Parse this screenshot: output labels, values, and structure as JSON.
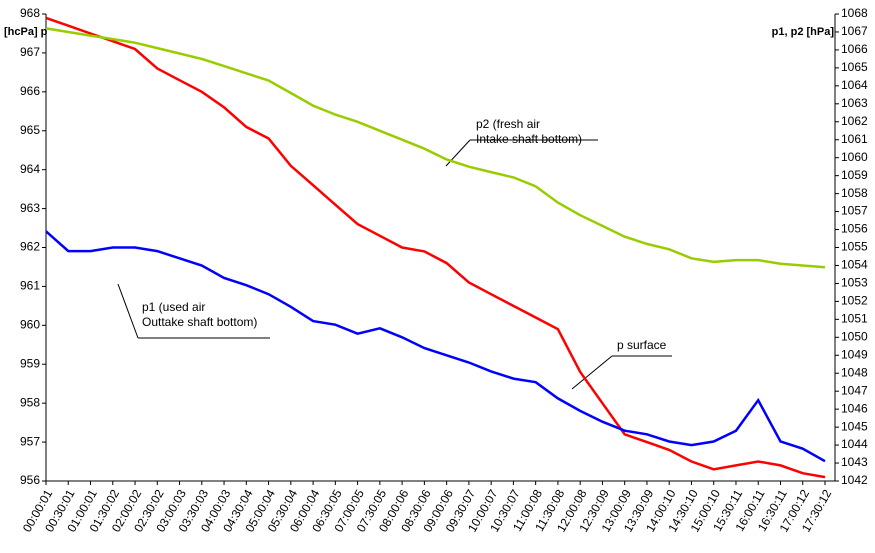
{
  "chart_data": {
    "type": "line",
    "ylabel": "[hcPa] p",
    "y2label": "p1, p2 [hPa]",
    "categories": [
      "00:00:01",
      "00:30:01",
      "01:00:01",
      "01:30:02",
      "02:00:02",
      "02:30:02",
      "03:00:03",
      "03:30:03",
      "04:00:03",
      "04:30:04",
      "05:00:04",
      "05:30:04",
      "06:00:04",
      "06:30:05",
      "07:00:05",
      "07:30:05",
      "08:00:06",
      "08:30:06",
      "09:00:06",
      "09:30:07",
      "10:00:07",
      "10:30:07",
      "11:00:08",
      "11:30:08",
      "12:00:08",
      "12:30:09",
      "13:00:09",
      "13:30:09",
      "14:00:10",
      "14:30:10",
      "15:00:10",
      "15:30:11",
      "16:00:11",
      "16:30:11",
      "17:00:12",
      "17:30:12"
    ],
    "series": [
      {
        "name": "p surface",
        "color": "#ff0000",
        "values": [
          967.9,
          967.7,
          967.5,
          967.3,
          967.1,
          966.6,
          966.3,
          966.0,
          965.6,
          965.1,
          964.8,
          964.1,
          963.6,
          963.1,
          962.6,
          962.3,
          962.0,
          961.9,
          961.6,
          961.1,
          960.8,
          960.5,
          960.2,
          959.9,
          958.8,
          958.0,
          957.2,
          957.0,
          956.8,
          956.5,
          956.3,
          956.4,
          956.5,
          956.4,
          956.2,
          956.1
        ]
      },
      {
        "name": "p2 (fresh air Intake shaft bottom)",
        "color": "#99cc00",
        "axis": "y2",
        "values": [
          1067.2,
          1067.0,
          1066.8,
          1066.6,
          1066.4,
          1066.1,
          1065.8,
          1065.5,
          1065.1,
          1064.7,
          1064.3,
          1063.6,
          1062.9,
          1062.4,
          1062.0,
          1061.5,
          1061.0,
          1060.5,
          1059.9,
          1059.5,
          1059.2,
          1058.9,
          1058.4,
          1057.5,
          1056.8,
          1056.2,
          1055.6,
          1055.2,
          1054.9,
          1054.4,
          1054.2,
          1054.3,
          1054.3,
          1054.1,
          1054.0,
          1053.9
        ]
      },
      {
        "name": "p1 (used air Outtake shaft bottom)",
        "color": "#0000ff",
        "axis": "y2",
        "values": [
          1055.9,
          1054.8,
          1054.8,
          1055.0,
          1055.0,
          1054.8,
          1054.4,
          1054.0,
          1053.3,
          1052.9,
          1052.4,
          1051.7,
          1050.9,
          1050.7,
          1050.2,
          1050.5,
          1050.0,
          1049.4,
          1049.0,
          1048.6,
          1048.1,
          1047.7,
          1047.5,
          1046.6,
          1045.9,
          1045.3,
          1044.8,
          1044.6,
          1044.2,
          1044.0,
          1044.2,
          1044.8,
          1046.5,
          1044.2,
          1043.8,
          1043.1
        ]
      }
    ],
    "annotations": [
      {
        "lines": [
          "p2 (fresh air",
          "Intake shaft bottom)"
        ]
      },
      {
        "lines": [
          "p1 (used air",
          "Outtake shaft bottom)"
        ]
      },
      {
        "lines": [
          "p surface"
        ]
      }
    ],
    "ylim": [
      956,
      968
    ],
    "yticks": [
      956,
      957,
      958,
      959,
      960,
      961,
      962,
      963,
      964,
      965,
      966,
      967,
      968
    ],
    "y2lim": [
      1042,
      1068
    ],
    "y2ticks": [
      1042,
      1043,
      1044,
      1045,
      1046,
      1047,
      1048,
      1049,
      1050,
      1051,
      1052,
      1053,
      1054,
      1055,
      1056,
      1057,
      1058,
      1059,
      1060,
      1061,
      1062,
      1063,
      1064,
      1065,
      1066,
      1067,
      1068
    ],
    "grid": false
  }
}
